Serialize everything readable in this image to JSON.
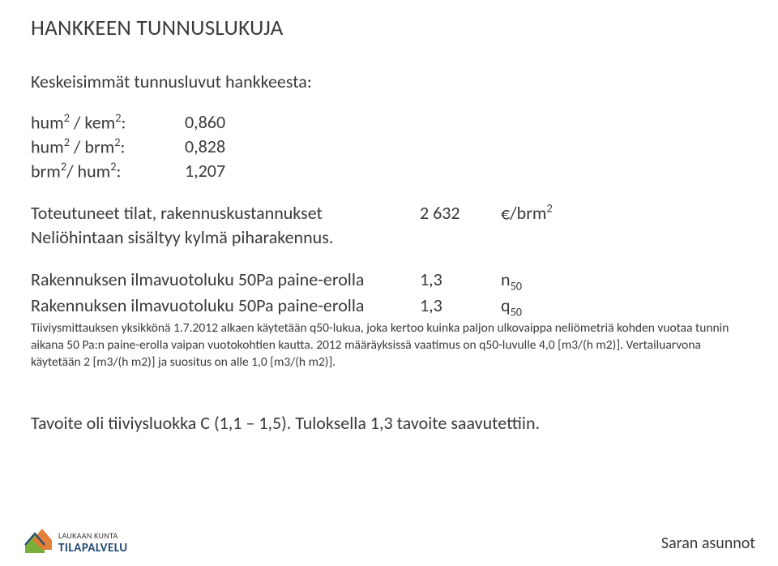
{
  "title": "HANKKEEN TUNNUSLUKUJA",
  "subtitle": "Keskeisimmät tunnusluvut hankkeesta:",
  "ratios": [
    {
      "label_html": "hum<sup>2</sup> / kem<sup>2</sup>:",
      "value": "0,860"
    },
    {
      "label_html": "hum<sup>2</sup> / brm<sup>2</sup>:",
      "value": "0,828"
    },
    {
      "label_html": "brm<sup>2</sup>/ hum<sup>2</sup>:",
      "value": "1,207"
    }
  ],
  "cost_row": {
    "label": "Toteutuneet tilat, rakennuskustannukset",
    "value": "2 632",
    "unit_html": "/brm<sup>2</sup>",
    "currency": "€"
  },
  "note_line": "Neliöhintaan sisältyy kylmä piharakennus.",
  "air_rows": [
    {
      "label": "Rakennuksen ilmavuotoluku 50Pa paine-erolla",
      "value": "1,3",
      "sym_html": "n<sub>50</sub>"
    },
    {
      "label": "Rakennuksen ilmavuotoluku 50Pa paine-erolla",
      "value": "1,3",
      "sym_html": "q<sub>50</sub>"
    }
  ],
  "fine_print": "Tiiviysmittauksen yksikkönä 1.7.2012 alkaen käytetään q50-lukua, joka kertoo kuinka paljon ulkovaippa neliömetriä kohden vuotaa tunnin aikana 50 Pa:n paine-erolla vaipan vuotokohtien kautta. 2012 määräyksissä vaatimus on q50-luvulle 4,0 [m3/(h m2)]. Vertailuarvona käytetään 2 [m3/(h m2)] ja suositus on alle 1,0 [m3/(h m2)].",
  "tavoite": "Tavoite oli tiiviysluokka C (1,1 – 1,5). Tuloksella 1,3 tavoite saavutettiin.",
  "footer": {
    "logo_line1": "LAUKAAN KUNTA",
    "logo_line2": "TILAPALVELU",
    "right": "Saran asunnot"
  },
  "colors": {
    "text": "#3a3a3a",
    "logo_blue": "#234a73",
    "logo_green": "#7aae3a",
    "logo_orange": "#e07a2f"
  }
}
